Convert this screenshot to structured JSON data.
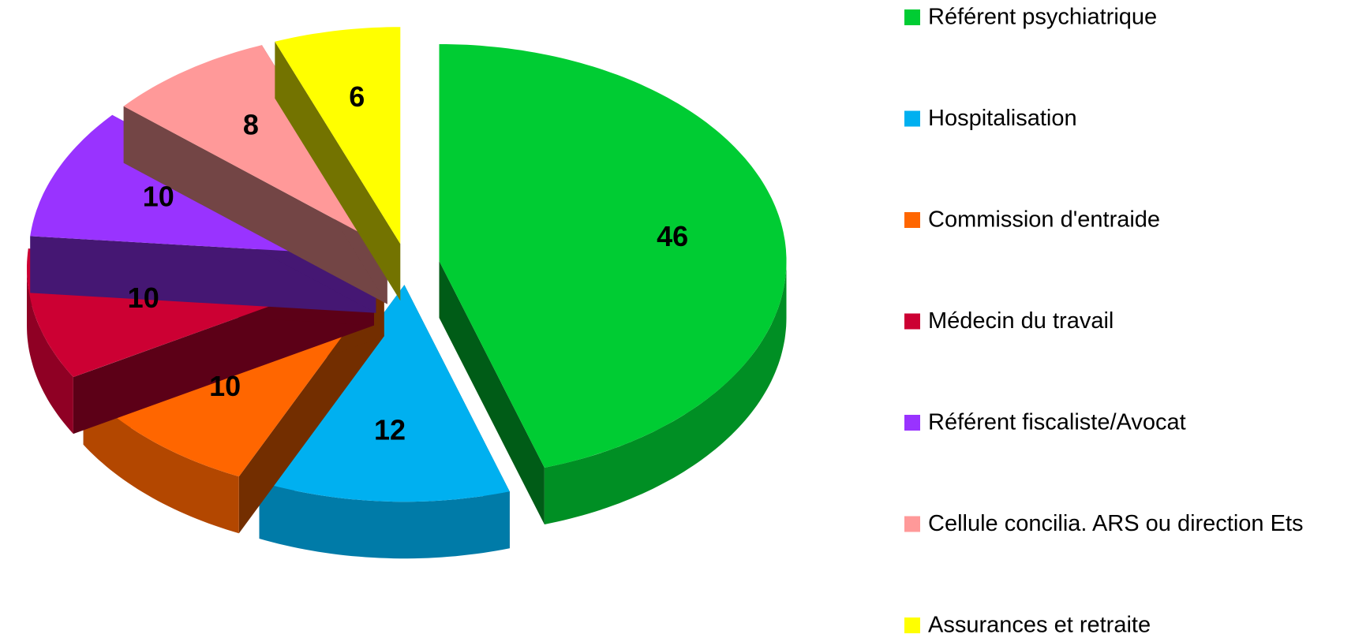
{
  "chart_data": {
    "type": "pie3d",
    "categories": [
      "Référent psychiatrique",
      "Hospitalisation",
      "Commission d'entraide",
      "Médecin du travail",
      "Référent fiscaliste/Avocat",
      "Cellule concilia. ARS ou direction Ets",
      "Assurances et retraite"
    ],
    "values": [
      46,
      12,
      10,
      10,
      10,
      8,
      6
    ],
    "colors": [
      "#00cc33",
      "#00b0f0",
      "#ff6600",
      "#cc0033",
      "#9933ff",
      "#ff9999",
      "#ffff00"
    ],
    "legend": "right"
  }
}
